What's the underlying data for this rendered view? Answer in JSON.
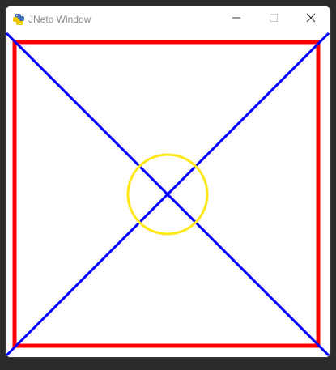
{
  "window": {
    "title": "JNeto Window",
    "app_icon": "python-snake-icon",
    "controls": {
      "minimize_icon": "minimize-icon",
      "maximize_icon": "maximize-icon",
      "close_icon": "close-icon"
    }
  },
  "canvas": {
    "background": "#ffffff",
    "square_color": "#ff0000",
    "diagonal_color": "#0000ff",
    "circle_color": "#ffe81a"
  }
}
